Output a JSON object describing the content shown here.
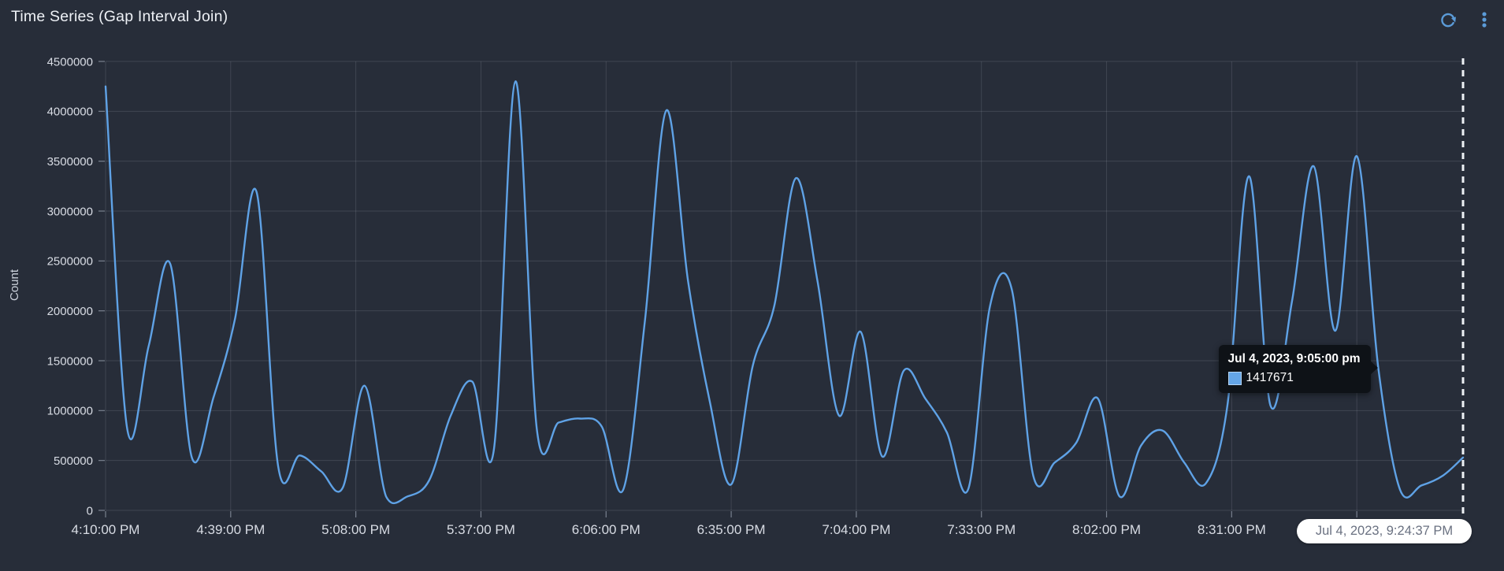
{
  "panel": {
    "title": "Time Series (Gap Interval Join)",
    "accent_color": "#5b9bd8",
    "icons": {
      "refresh": "circular-arrow",
      "menu": "vertical-ellipsis"
    }
  },
  "chart_data": {
    "type": "line",
    "title": "Time Series (Gap Interval Join)",
    "xlabel": "",
    "ylabel": "Count",
    "ylim": [
      0,
      4500000
    ],
    "grid": true,
    "legend": false,
    "line_color": "#5fa2e6",
    "background_color": "#272d39",
    "y_ticks": [
      0,
      500000,
      1000000,
      1500000,
      2000000,
      2500000,
      3000000,
      3500000,
      4000000,
      4500000
    ],
    "x_ticks": [
      {
        "min": 0,
        "label": "4:10:00 PM"
      },
      {
        "min": 29,
        "label": "4:39:00 PM"
      },
      {
        "min": 58,
        "label": "5:08:00 PM"
      },
      {
        "min": 87,
        "label": "5:37:00 PM"
      },
      {
        "min": 116,
        "label": "6:06:00 PM"
      },
      {
        "min": 145,
        "label": "6:35:00 PM"
      },
      {
        "min": 174,
        "label": "7:04:00 PM"
      },
      {
        "min": 203,
        "label": "7:33:00 PM"
      },
      {
        "min": 232,
        "label": "8:02:00 PM"
      },
      {
        "min": 261,
        "label": "8:31:00 PM"
      },
      {
        "min": 290,
        "label": ""
      }
    ],
    "x_start_label": "4:10:00 PM",
    "now_marker": {
      "min": 314.62,
      "label": "Jul 4, 2023, 9:24:37 PM",
      "style": "dashed-white"
    },
    "series": [
      {
        "name": "Count",
        "points": [
          [
            0,
            4250000
          ],
          [
            5,
            820000
          ],
          [
            10,
            1650000
          ],
          [
            15,
            2470000
          ],
          [
            20,
            530000
          ],
          [
            25,
            1130000
          ],
          [
            30,
            1920000
          ],
          [
            35,
            3190000
          ],
          [
            40,
            440000
          ],
          [
            45,
            550000
          ],
          [
            50,
            390000
          ],
          [
            55,
            230000
          ],
          [
            60,
            1250000
          ],
          [
            65,
            140000
          ],
          [
            70,
            140000
          ],
          [
            75,
            300000
          ],
          [
            80,
            950000
          ],
          [
            85,
            1290000
          ],
          [
            90,
            610000
          ],
          [
            95,
            4300000
          ],
          [
            100,
            800000
          ],
          [
            105,
            880000
          ],
          [
            110,
            920000
          ],
          [
            115,
            840000
          ],
          [
            120,
            210000
          ],
          [
            125,
            1900000
          ],
          [
            130,
            4010000
          ],
          [
            135,
            2300000
          ],
          [
            140,
            1100000
          ],
          [
            145,
            260000
          ],
          [
            150,
            1450000
          ],
          [
            155,
            2050000
          ],
          [
            160,
            3330000
          ],
          [
            165,
            2300000
          ],
          [
            170,
            950000
          ],
          [
            175,
            1790000
          ],
          [
            180,
            540000
          ],
          [
            185,
            1400000
          ],
          [
            190,
            1120000
          ],
          [
            195,
            780000
          ],
          [
            200,
            220000
          ],
          [
            205,
            2050000
          ],
          [
            210,
            2220000
          ],
          [
            215,
            350000
          ],
          [
            220,
            480000
          ],
          [
            225,
            680000
          ],
          [
            230,
            1120000
          ],
          [
            235,
            140000
          ],
          [
            240,
            650000
          ],
          [
            245,
            800000
          ],
          [
            250,
            480000
          ],
          [
            255,
            270000
          ],
          [
            260,
            1050000
          ],
          [
            265,
            3350000
          ],
          [
            270,
            1050000
          ],
          [
            275,
            2100000
          ],
          [
            280,
            3450000
          ],
          [
            285,
            1800000
          ],
          [
            290,
            3550000
          ],
          [
            295,
            1417671
          ],
          [
            300,
            210000
          ],
          [
            305,
            250000
          ],
          [
            310,
            350000
          ],
          [
            314.62,
            530000
          ]
        ]
      }
    ]
  },
  "tooltip": {
    "title": "Jul 4, 2023, 9:05:00 pm",
    "value": "1417671",
    "point_min": 295,
    "series_color": "#64a5e6"
  },
  "time_pill": {
    "label": "Jul 4, 2023, 9:24:37 PM"
  }
}
